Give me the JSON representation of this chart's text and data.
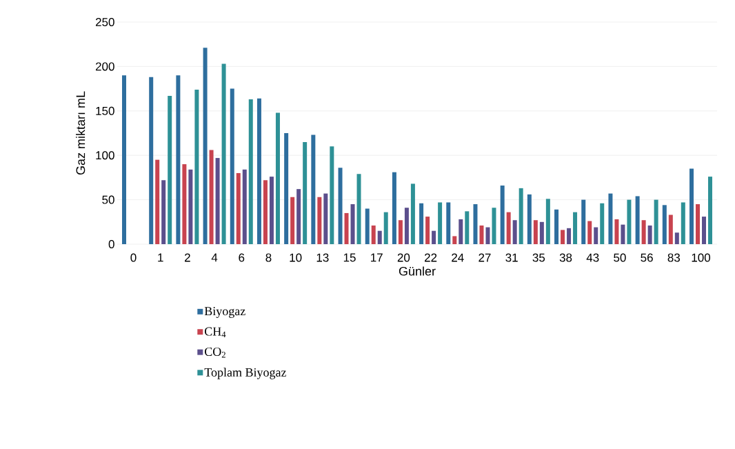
{
  "chart_data": {
    "type": "bar",
    "xlabel": "Günler",
    "ylabel": "Gaz miktarı mL",
    "categories": [
      "0",
      "1",
      "2",
      "4",
      "6",
      "8",
      "10",
      "13",
      "15",
      "17",
      "20",
      "22",
      "24",
      "27",
      "31",
      "35",
      "38",
      "43",
      "50",
      "56",
      "83",
      "100"
    ],
    "series": [
      {
        "name": "Biyogaz",
        "color": "#2e6e9e",
        "values": [
          190,
          188,
          190,
          221,
          175,
          164,
          125,
          123,
          86,
          40,
          81,
          46,
          47,
          45,
          66,
          56,
          39,
          50,
          57,
          54,
          44,
          85
        ]
      },
      {
        "name": "CH$_{4}$",
        "color": "#c8434f",
        "values": [
          null,
          95,
          90,
          106,
          80,
          72,
          53,
          53,
          35,
          21,
          27,
          31,
          9,
          21,
          36,
          27,
          16,
          26,
          28,
          27,
          33,
          45
        ]
      },
      {
        "name": "CO$_{2}$",
        "color": "#5b4f8c",
        "values": [
          null,
          72,
          84,
          97,
          84,
          76,
          62,
          57,
          45,
          15,
          41,
          15,
          28,
          19,
          27,
          25,
          18,
          19,
          22,
          21,
          13,
          31
        ]
      },
      {
        "name": "Toplam Biyogaz",
        "color": "#2e9196",
        "values": [
          null,
          167,
          174,
          203,
          163,
          148,
          115,
          110,
          79,
          36,
          68,
          47,
          37,
          41,
          63,
          51,
          36,
          46,
          50,
          50,
          47,
          76
        ]
      }
    ],
    "ylim": [
      0,
      250
    ],
    "yticks": [
      0,
      50,
      100,
      150,
      200,
      250
    ],
    "grid": "y",
    "legend": "bottom"
  }
}
